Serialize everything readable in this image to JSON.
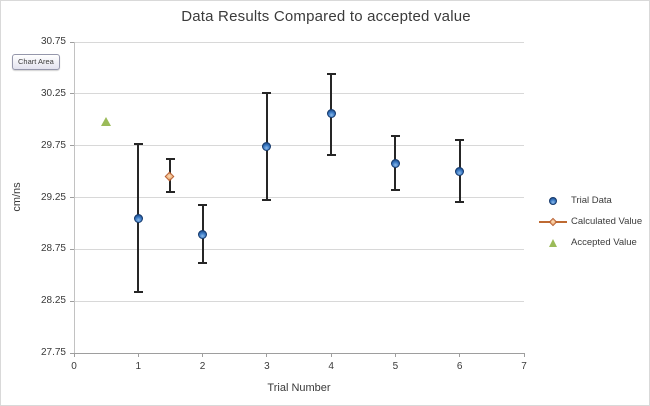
{
  "tooltip": {
    "label": "Chart Area"
  },
  "chart_data": {
    "type": "scatter",
    "title": "Data Results Compared to accepted value",
    "xlabel": "Trial Number",
    "ylabel": "cm/ns",
    "xlim": [
      0,
      7
    ],
    "ylim": [
      27.75,
      30.75
    ],
    "x_ticks": [
      0,
      1,
      2,
      3,
      4,
      5,
      6,
      7
    ],
    "y_ticks": [
      30.75,
      30.25,
      29.75,
      29.25,
      28.75,
      28.25,
      27.75
    ],
    "grid": "horizontal-major",
    "legend_position": "right",
    "error_bar_color": "#262626",
    "gridline_color": "#d8d8d8",
    "series": [
      {
        "name": "Trial Data",
        "marker": "circle",
        "color": "#3e7dc8",
        "points": [
          {
            "x": 1,
            "y": 29.05,
            "err_lo": 28.34,
            "err_hi": 29.77
          },
          {
            "x": 2,
            "y": 28.89,
            "err_lo": 28.62,
            "err_hi": 29.18
          },
          {
            "x": 3,
            "y": 29.74,
            "err_lo": 29.23,
            "err_hi": 30.26
          },
          {
            "x": 4,
            "y": 30.06,
            "err_lo": 29.66,
            "err_hi": 30.44
          },
          {
            "x": 5,
            "y": 29.58,
            "err_lo": 29.32,
            "err_hi": 29.84
          },
          {
            "x": 6,
            "y": 29.5,
            "err_lo": 29.21,
            "err_hi": 29.8
          }
        ]
      },
      {
        "name": "Calculated Value",
        "marker": "diamond",
        "color": "#be6a32",
        "points": [
          {
            "x": 1.5,
            "y": 29.45,
            "err_lo": 29.3,
            "err_hi": 29.62
          }
        ]
      },
      {
        "name": "Accepted Value",
        "marker": "triangle",
        "color": "#9bbb59",
        "points": [
          {
            "x": 0.5,
            "y": 29.98
          }
        ]
      }
    ]
  }
}
